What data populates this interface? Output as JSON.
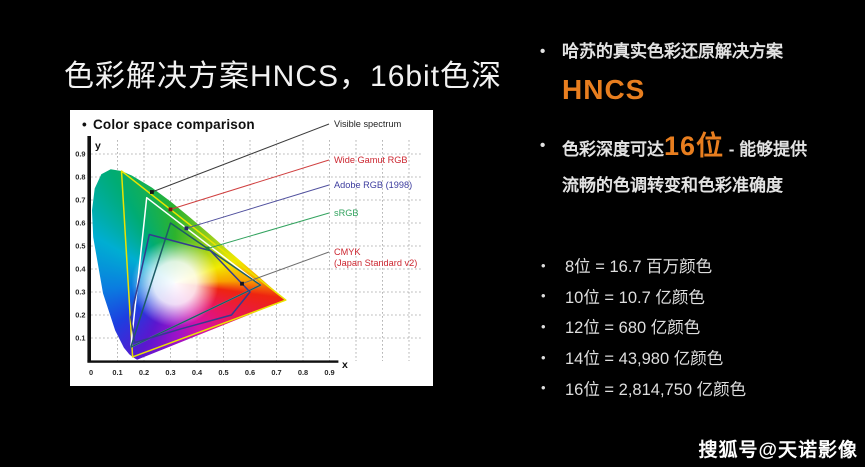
{
  "glyphs": {
    "bullet": "•"
  },
  "slide": {
    "title": "色彩解决方案HNCS，16bit色深",
    "bullet1": {
      "text": "哈苏的真实色彩还原解决方案",
      "highlight": "HNCS"
    },
    "bullet2": {
      "prefix": "色彩深度可达",
      "highlight": "16位",
      "suffix": " - 能够提供",
      "line2": "流畅的色调转变和色彩准确度"
    },
    "bit_list": [
      "8位 = 16.7 百万颜色",
      "10位 = 10.7 亿颜色",
      "12位 = 680 亿颜色",
      "14位 = 43,980 亿颜色",
      "16位 = 2,814,750 亿颜色"
    ],
    "watermark": "搜狐号@天诺影像",
    "accent_color": "#e87e1f",
    "text_color": "#e3e3e3",
    "background_color": "#000000"
  },
  "chart_data": {
    "type": "area",
    "title": "Color space comparison",
    "xlabel": "x",
    "ylabel": "y",
    "xlim": [
      0,
      0.95
    ],
    "ylim": [
      0,
      0.95
    ],
    "grid": true,
    "legend_position": "right",
    "panel_background": "#ffffff",
    "xticks": [
      "0",
      "0.1",
      "0.2",
      "0.3",
      "0.4",
      "0.5",
      "0.6",
      "0.7",
      "0.8",
      "0.9"
    ],
    "yticks": [
      "0.1",
      "0.2",
      "0.3",
      "0.4",
      "0.5",
      "0.6",
      "0.7",
      "0.8",
      "0.9"
    ],
    "white_point": [
      0.31,
      0.33
    ],
    "spectral_locus": [
      [
        0.1741,
        0.005
      ],
      [
        0.1566,
        0.0177
      ],
      [
        0.144,
        0.0297
      ],
      [
        0.1241,
        0.0578
      ],
      [
        0.0913,
        0.1327
      ],
      [
        0.0454,
        0.295
      ],
      [
        0.0082,
        0.5384
      ],
      [
        0.0039,
        0.6548
      ],
      [
        0.0139,
        0.7502
      ],
      [
        0.0389,
        0.812
      ],
      [
        0.0743,
        0.8338
      ],
      [
        0.1142,
        0.8262
      ],
      [
        0.1547,
        0.8059
      ],
      [
        0.2296,
        0.7543
      ],
      [
        0.3016,
        0.6923
      ],
      [
        0.3731,
        0.6245
      ],
      [
        0.4441,
        0.5547
      ],
      [
        0.5125,
        0.4866
      ],
      [
        0.5752,
        0.4242
      ],
      [
        0.627,
        0.3725
      ],
      [
        0.6658,
        0.334
      ],
      [
        0.6915,
        0.3083
      ],
      [
        0.7347,
        0.2653
      ]
    ],
    "series": [
      {
        "name": "Visible spectrum",
        "kind": "spectral-locus",
        "label_lines": [
          "Visible spectrum"
        ],
        "label_color": "#1f1f1f",
        "leader_color": "#3c3c3c",
        "marker": [
          0.23,
          0.735
        ],
        "marker_color": "#141414"
      },
      {
        "name": "Wide Gamut RGB",
        "kind": "gamut-triangle",
        "stroke": "#e9e400",
        "label_lines": [
          "Wide Gamut RGB"
        ],
        "label_color": "#cc2630",
        "leader_color": "#d04040",
        "marker": [
          0.3,
          0.659
        ],
        "marker_color": "#8a1010",
        "vertices": [
          [
            0.735,
            0.265
          ],
          [
            0.115,
            0.826
          ],
          [
            0.157,
            0.018
          ]
        ]
      },
      {
        "name": "Adobe RGB (1998)",
        "kind": "gamut-triangle",
        "stroke": "#ffffff",
        "label_lines": [
          "Adobe RGB (1998)"
        ],
        "label_color": "#3c3c9e",
        "leader_color": "#50509e",
        "marker": [
          0.36,
          0.577
        ],
        "marker_color": "#26266a",
        "vertices": [
          [
            0.64,
            0.33
          ],
          [
            0.21,
            0.71
          ],
          [
            0.15,
            0.06
          ]
        ]
      },
      {
        "name": "sRGB",
        "kind": "gamut-triangle",
        "stroke": "#1d5c66",
        "label_lines": [
          "sRGB"
        ],
        "label_color": "#33a35f",
        "leader_color": "#33a35f",
        "marker": [
          0.44,
          0.489
        ],
        "marker_color": "#1e7d3c",
        "vertices": [
          [
            0.64,
            0.33
          ],
          [
            0.3,
            0.6
          ],
          [
            0.15,
            0.06
          ]
        ]
      },
      {
        "name": "CMYK (Japan Standard v2)",
        "kind": "gamut-polygon",
        "stroke": "#343c8e",
        "label_lines": [
          "CMYK",
          "(Japan Standard v2)"
        ],
        "label_color": "#cc2630",
        "leader_color": "#6e6e6e",
        "marker": [
          0.57,
          0.336
        ],
        "marker_color": "#141422",
        "vertices": [
          [
            0.165,
            0.08
          ],
          [
            0.15,
            0.19
          ],
          [
            0.22,
            0.55
          ],
          [
            0.45,
            0.48
          ],
          [
            0.6,
            0.3
          ],
          [
            0.53,
            0.2
          ],
          [
            0.34,
            0.14
          ]
        ]
      }
    ]
  }
}
